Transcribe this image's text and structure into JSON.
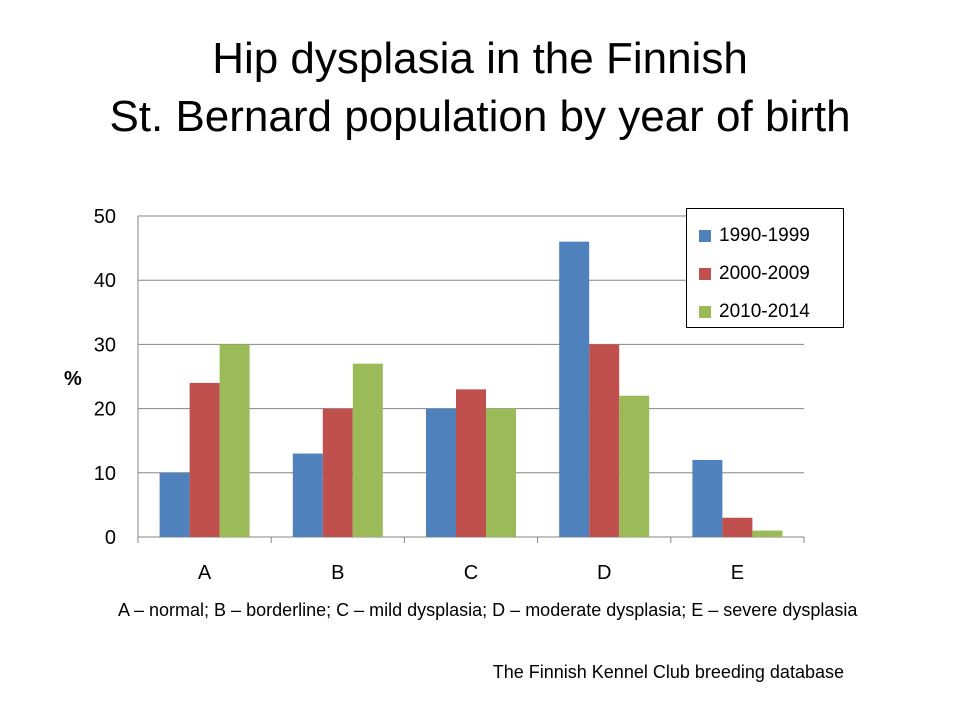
{
  "slide": {
    "title_line1": "Hip dysplasia in the Finnish",
    "title_line2": "St. Bernard population by year of birth",
    "caption": "A – normal; B – borderline; C – mild dysplasia; D – moderate dysplasia; E – severe dysplasia",
    "source": "The Finnish Kennel Club breeding database"
  },
  "chart_data": {
    "type": "bar",
    "title": "Hip dysplasia in the Finnish St. Bernard population by year of birth",
    "xlabel": "",
    "ylabel": "%",
    "ylim": [
      0,
      50
    ],
    "yticks": [
      0,
      10,
      20,
      30,
      40,
      50
    ],
    "grid": true,
    "legend_position": "top-right",
    "categories": [
      "A",
      "B",
      "C",
      "D",
      "E"
    ],
    "series": [
      {
        "name": "1990-1999",
        "color": "#4f81bd",
        "values": [
          10,
          13,
          20,
          46,
          12
        ]
      },
      {
        "name": "2000-2009",
        "color": "#c0504d",
        "values": [
          24,
          20,
          23,
          30,
          3
        ]
      },
      {
        "name": "2010-2014",
        "color": "#9bbb59",
        "values": [
          30,
          27,
          20,
          22,
          1
        ]
      }
    ]
  }
}
